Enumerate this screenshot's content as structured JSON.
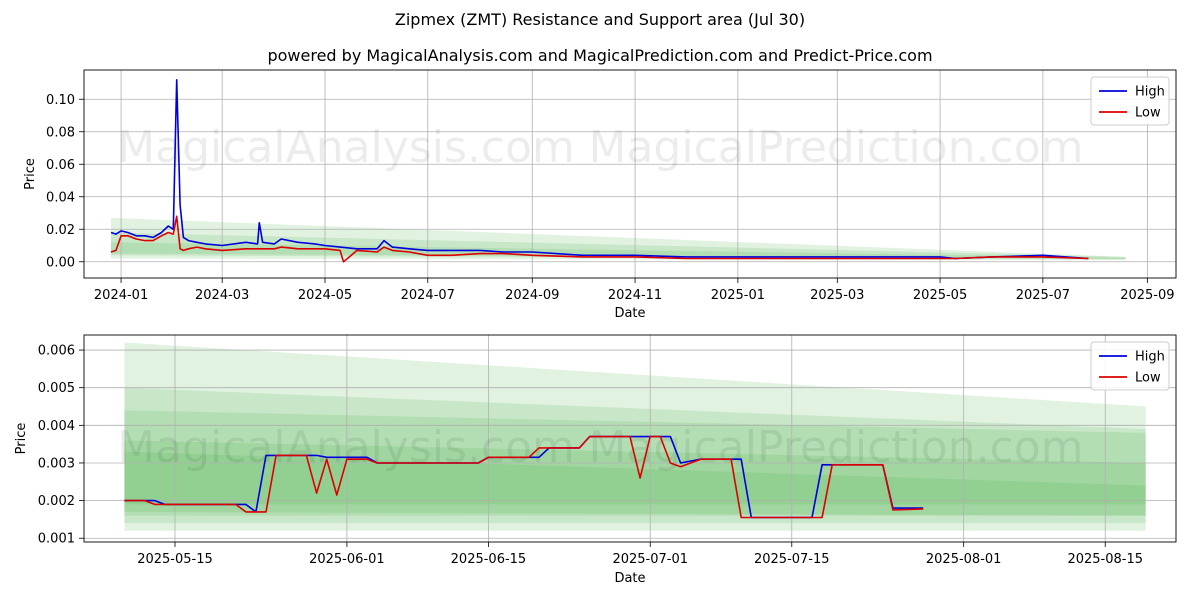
{
  "title": "Zipmex (ZMT) Resistance and Support area (Jul 30)",
  "subtitle": "powered by MagicalAnalysis.com and MagicalPrediction.com and Predict-Price.com",
  "watermarks": [
    "MagicalAnalysis.com",
    "MagicalPrediction.com"
  ],
  "colors": {
    "high": "#0000dd",
    "low": "#dd0000",
    "band": "#4caf50"
  },
  "chart_data": [
    {
      "type": "line",
      "xlabel": "Date",
      "ylabel": "Price",
      "grid": true,
      "legend_position": "top-right",
      "xlim": [
        "2023-12-10",
        "2025-09-18"
      ],
      "ylim": [
        -0.01,
        0.118
      ],
      "xticks": [
        "2024-01",
        "2024-03",
        "2024-05",
        "2024-07",
        "2024-09",
        "2024-11",
        "2025-01",
        "2025-03",
        "2025-05",
        "2025-07",
        "2025-09"
      ],
      "yticks": [
        "0.00",
        "0.02",
        "0.04",
        "0.06",
        "0.08",
        "0.10"
      ],
      "series": [
        {
          "name": "High",
          "x": [
            "2023-12-26",
            "2023-12-29",
            "2024-01-01",
            "2024-01-05",
            "2024-01-10",
            "2024-01-15",
            "2024-01-20",
            "2024-01-25",
            "2024-01-29",
            "2024-02-01",
            "2024-02-03",
            "2024-02-05",
            "2024-02-07",
            "2024-02-10",
            "2024-02-15",
            "2024-02-20",
            "2024-03-01",
            "2024-03-15",
            "2024-03-22",
            "2024-03-23",
            "2024-03-25",
            "2024-04-01",
            "2024-04-05",
            "2024-04-15",
            "2024-04-25",
            "2024-05-01",
            "2024-05-10",
            "2024-05-20",
            "2024-06-01",
            "2024-06-05",
            "2024-06-10",
            "2024-06-20",
            "2024-07-01",
            "2024-07-15",
            "2024-08-01",
            "2024-08-15",
            "2024-09-01",
            "2024-10-01",
            "2024-11-01",
            "2024-12-01",
            "2025-01-01",
            "2025-02-01",
            "2025-03-01",
            "2025-04-01",
            "2025-05-01",
            "2025-05-10",
            "2025-06-01",
            "2025-07-01",
            "2025-07-28"
          ],
          "values": [
            0.018,
            0.017,
            0.019,
            0.018,
            0.016,
            0.016,
            0.015,
            0.018,
            0.022,
            0.02,
            0.112,
            0.035,
            0.015,
            0.013,
            0.012,
            0.011,
            0.01,
            0.012,
            0.011,
            0.024,
            0.012,
            0.011,
            0.014,
            0.012,
            0.011,
            0.01,
            0.009,
            0.008,
            0.008,
            0.013,
            0.009,
            0.008,
            0.007,
            0.007,
            0.007,
            0.006,
            0.006,
            0.004,
            0.004,
            0.003,
            0.003,
            0.003,
            0.003,
            0.003,
            0.003,
            0.002,
            0.003,
            0.004,
            0.002
          ]
        },
        {
          "name": "Low",
          "x": [
            "2023-12-26",
            "2023-12-29",
            "2024-01-01",
            "2024-01-05",
            "2024-01-10",
            "2024-01-15",
            "2024-01-20",
            "2024-01-25",
            "2024-01-29",
            "2024-02-01",
            "2024-02-03",
            "2024-02-05",
            "2024-02-07",
            "2024-02-10",
            "2024-02-15",
            "2024-02-20",
            "2024-03-01",
            "2024-03-15",
            "2024-03-22",
            "2024-03-25",
            "2024-04-01",
            "2024-04-05",
            "2024-04-15",
            "2024-04-25",
            "2024-05-01",
            "2024-05-10",
            "2024-05-12",
            "2024-05-20",
            "2024-06-01",
            "2024-06-05",
            "2024-06-10",
            "2024-06-20",
            "2024-07-01",
            "2024-07-15",
            "2024-08-01",
            "2024-08-15",
            "2024-09-01",
            "2024-10-01",
            "2024-11-01",
            "2024-12-01",
            "2025-01-01",
            "2025-02-01",
            "2025-03-01",
            "2025-04-01",
            "2025-05-01",
            "2025-05-10",
            "2025-06-01",
            "2025-07-01",
            "2025-07-28"
          ],
          "values": [
            0.006,
            0.007,
            0.016,
            0.016,
            0.014,
            0.013,
            0.013,
            0.016,
            0.018,
            0.017,
            0.028,
            0.008,
            0.007,
            0.008,
            0.009,
            0.008,
            0.007,
            0.008,
            0.008,
            0.008,
            0.008,
            0.009,
            0.008,
            0.008,
            0.008,
            0.007,
            0.0,
            0.007,
            0.006,
            0.009,
            0.007,
            0.006,
            0.004,
            0.004,
            0.005,
            0.005,
            0.004,
            0.003,
            0.003,
            0.002,
            0.002,
            0.002,
            0.002,
            0.002,
            0.002,
            0.002,
            0.003,
            0.003,
            0.002
          ]
        }
      ],
      "bands": [
        {
          "x": [
            "2023-12-26",
            "2025-08-19"
          ],
          "upper": [
            0.027,
            0.003
          ],
          "lower": [
            0.002,
            0.001
          ]
        },
        {
          "x": [
            "2023-12-26",
            "2025-08-19"
          ],
          "upper": [
            0.018,
            0.003
          ],
          "lower": [
            0.004,
            0.0015
          ]
        },
        {
          "x": [
            "2023-12-26",
            "2025-08-19"
          ],
          "upper": [
            0.012,
            0.0025
          ],
          "lower": [
            0.005,
            0.0018
          ]
        }
      ]
    },
    {
      "type": "line",
      "xlabel": "Date",
      "ylabel": "Price",
      "grid": true,
      "legend_position": "top-right",
      "xlim": [
        "2025-05-06",
        "2025-08-22"
      ],
      "ylim": [
        0.0009,
        0.0064
      ],
      "xticks": [
        "2025-05-15",
        "2025-06-01",
        "2025-06-15",
        "2025-07-01",
        "2025-07-15",
        "2025-08-01",
        "2025-08-15"
      ],
      "yticks": [
        "0.001",
        "0.002",
        "0.003",
        "0.004",
        "0.005",
        "0.006"
      ],
      "series": [
        {
          "name": "High",
          "x": [
            "2025-05-10",
            "2025-05-13",
            "2025-05-14",
            "2025-05-22",
            "2025-05-23",
            "2025-05-24",
            "2025-05-29",
            "2025-05-30",
            "2025-06-03",
            "2025-06-04",
            "2025-06-14",
            "2025-06-15",
            "2025-06-20",
            "2025-06-21",
            "2025-06-24",
            "2025-06-25",
            "2025-07-03",
            "2025-07-04",
            "2025-07-06",
            "2025-07-10",
            "2025-07-11",
            "2025-07-17",
            "2025-07-18",
            "2025-07-24",
            "2025-07-25",
            "2025-07-28"
          ],
          "values": [
            0.002,
            0.002,
            0.0019,
            0.0019,
            0.0017,
            0.0032,
            0.0032,
            0.00315,
            0.00315,
            0.003,
            0.003,
            0.00315,
            0.00315,
            0.0034,
            0.0034,
            0.0037,
            0.0037,
            0.003,
            0.0031,
            0.0031,
            0.00155,
            0.00155,
            0.00295,
            0.00295,
            0.0018,
            0.0018
          ]
        },
        {
          "name": "Low",
          "x": [
            "2025-05-10",
            "2025-05-12",
            "2025-05-13",
            "2025-05-21",
            "2025-05-22",
            "2025-05-24",
            "2025-05-25",
            "2025-05-28",
            "2025-05-29",
            "2025-05-30",
            "2025-05-31",
            "2025-06-01",
            "2025-06-03",
            "2025-06-04",
            "2025-06-14",
            "2025-06-15",
            "2025-06-19",
            "2025-06-20",
            "2025-06-24",
            "2025-06-25",
            "2025-06-29",
            "2025-06-30",
            "2025-07-01",
            "2025-07-02",
            "2025-07-03",
            "2025-07-04",
            "2025-07-06",
            "2025-07-09",
            "2025-07-10",
            "2025-07-17",
            "2025-07-18",
            "2025-07-19",
            "2025-07-24",
            "2025-07-25",
            "2025-07-28"
          ],
          "values": [
            0.002,
            0.002,
            0.0019,
            0.0019,
            0.0017,
            0.0017,
            0.0032,
            0.0032,
            0.0022,
            0.0031,
            0.00215,
            0.0031,
            0.0031,
            0.003,
            0.003,
            0.00315,
            0.00315,
            0.0034,
            0.0034,
            0.0037,
            0.0037,
            0.0026,
            0.0037,
            0.0037,
            0.003,
            0.0029,
            0.0031,
            0.0031,
            0.00155,
            0.00155,
            0.00155,
            0.00295,
            0.00295,
            0.00175,
            0.00178
          ]
        }
      ],
      "bands": [
        {
          "x": [
            "2025-05-10",
            "2025-08-19"
          ],
          "upper": [
            0.0062,
            0.0045
          ],
          "lower": [
            0.0012,
            0.0012
          ]
        },
        {
          "x": [
            "2025-05-10",
            "2025-08-19"
          ],
          "upper": [
            0.005,
            0.0039
          ],
          "lower": [
            0.0014,
            0.0014
          ]
        },
        {
          "x": [
            "2025-05-10",
            "2025-08-19"
          ],
          "upper": [
            0.0044,
            0.0038
          ],
          "lower": [
            0.0016,
            0.0016
          ]
        },
        {
          "x": [
            "2025-05-10",
            "2025-08-19"
          ],
          "upper": [
            0.0036,
            0.003
          ],
          "lower": [
            0.0017,
            0.0016
          ]
        },
        {
          "x": [
            "2025-05-10",
            "2025-08-19"
          ],
          "upper": [
            0.0033,
            0.0024
          ],
          "lower": [
            0.0019,
            0.0019
          ]
        }
      ]
    }
  ]
}
